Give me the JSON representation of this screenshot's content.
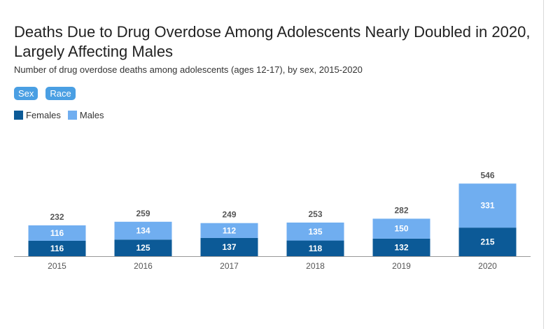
{
  "title": "Deaths Due to Drug Overdose Among Adolescents Nearly Doubled in 2020, Largely Affecting Males",
  "subtitle": "Number of drug overdose deaths among adolescents (ages 12-17), by sex, 2015-2020",
  "tabs": [
    {
      "label": "Sex"
    },
    {
      "label": "Race"
    }
  ],
  "colors": {
    "females": "#0c5a97",
    "males": "#70aef0",
    "tab": "#4a9fe3",
    "axis": "#999999"
  },
  "legend": [
    {
      "label": "Females",
      "color": "#0c5a97"
    },
    {
      "label": "Males",
      "color": "#70aef0"
    }
  ],
  "chart_data": {
    "type": "bar",
    "stacked": true,
    "categories": [
      "2015",
      "2016",
      "2017",
      "2018",
      "2019",
      "2020"
    ],
    "series": [
      {
        "name": "Females",
        "values": [
          116,
          125,
          137,
          118,
          132,
          215
        ]
      },
      {
        "name": "Males",
        "values": [
          116,
          134,
          112,
          135,
          150,
          331
        ]
      }
    ],
    "totals": [
      232,
      259,
      249,
      253,
      282,
      546
    ],
    "legend_position": "top-left",
    "grid": false
  }
}
